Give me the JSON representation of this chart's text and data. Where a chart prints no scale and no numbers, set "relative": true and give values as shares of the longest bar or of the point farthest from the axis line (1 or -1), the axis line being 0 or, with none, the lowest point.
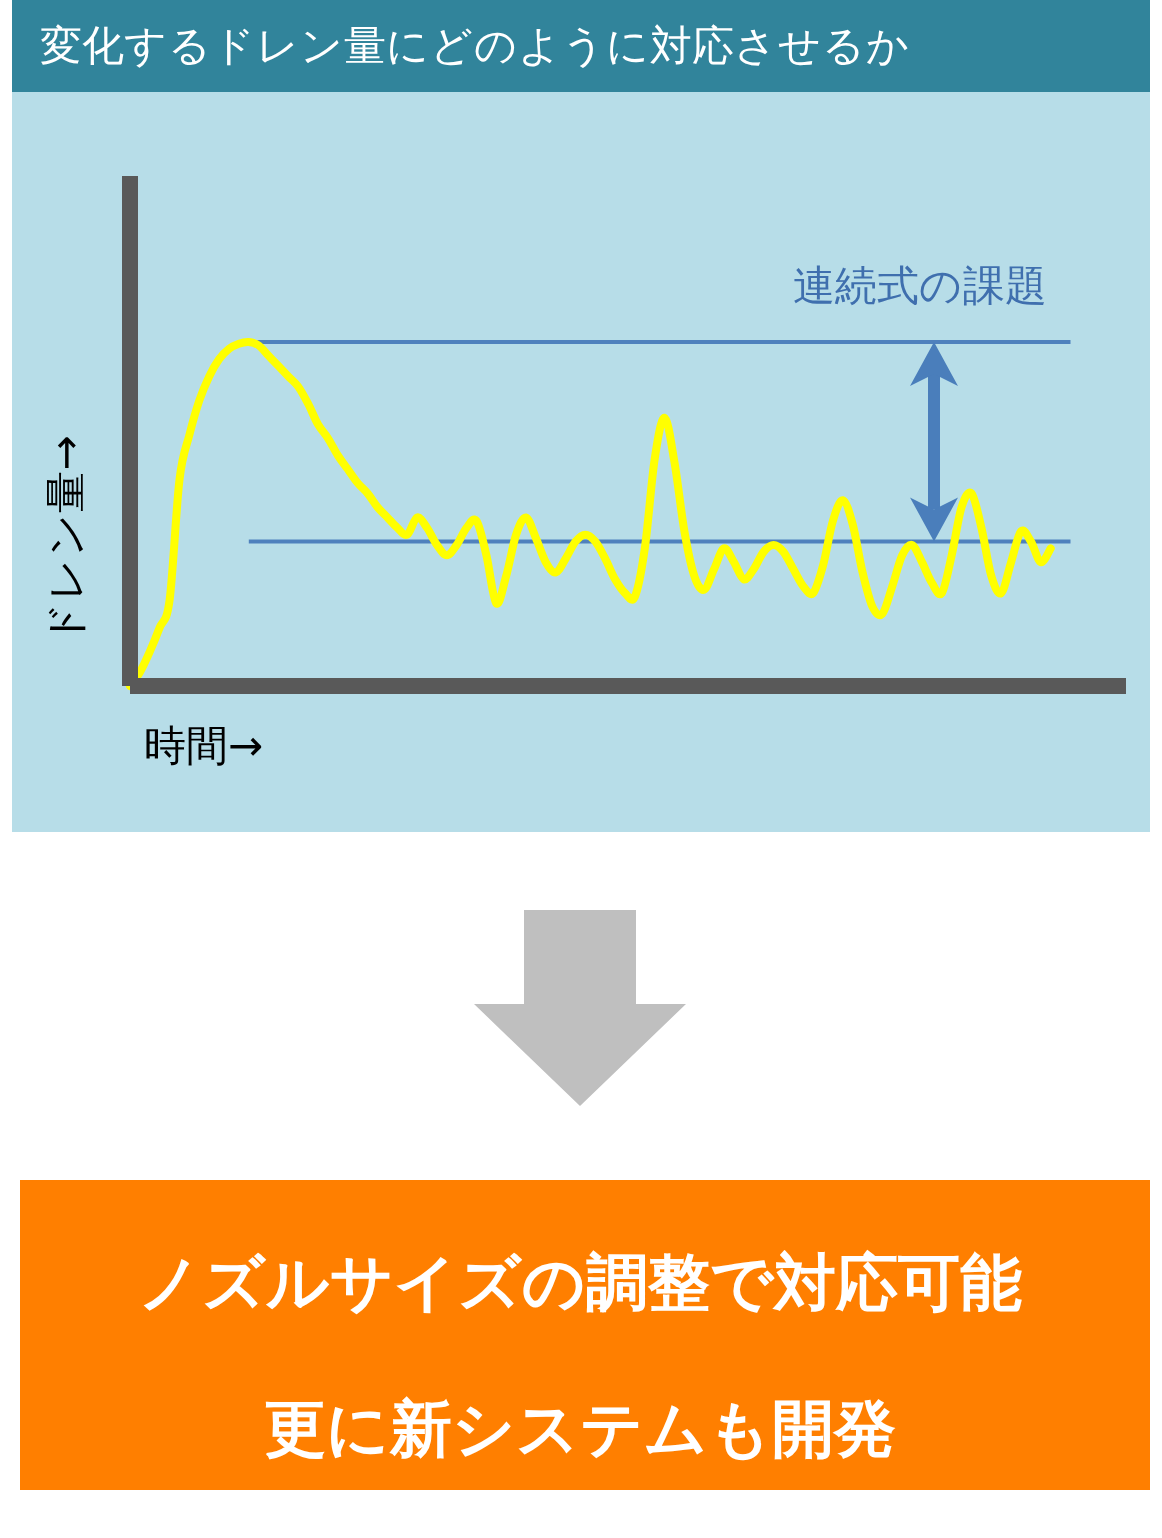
{
  "chart_data": {
    "type": "line",
    "relative": true,
    "title": "変化するドレン量にどのように対応させるか",
    "xlabel": "時間→",
    "ylabel": "ドレン量→",
    "categories": [
      null,
      null,
      null,
      null,
      null,
      null,
      null,
      null,
      null,
      null,
      null,
      null,
      null,
      null,
      null,
      null,
      null,
      null,
      null,
      null,
      null,
      null,
      null,
      null,
      null,
      null,
      null,
      null,
      null,
      null,
      null,
      null,
      null,
      null,
      null,
      null,
      null,
      null,
      null,
      null,
      null,
      null,
      null,
      null,
      null,
      null,
      null,
      null,
      null,
      null,
      null,
      null,
      null,
      null,
      null,
      null,
      null,
      null,
      null,
      null,
      null,
      null,
      null,
      null,
      null,
      null,
      null,
      null,
      null,
      null,
      null,
      null,
      null,
      null,
      null,
      null,
      null,
      null,
      null,
      null,
      null,
      null,
      null,
      null,
      null,
      null,
      null,
      null,
      null,
      null,
      null,
      null,
      null,
      null
    ],
    "series": [
      {
        "color": "#ffff00",
        "values": [
          0,
          0.04,
          0.1,
          0.17,
          0.25,
          0.6,
          0.73,
          0.83,
          0.9,
          0.95,
          0.98,
          0.995,
          1,
          0.99,
          0.96,
          0.93,
          0.9,
          0.87,
          0.82,
          0.76,
          0.72,
          0.67,
          0.63,
          0.59,
          0.56,
          0.52,
          0.49,
          0.46,
          0.44,
          0.49,
          0.46,
          0.41,
          0.38,
          0.41,
          0.46,
          0.48,
          0.38,
          0.24,
          0.32,
          0.44,
          0.49,
          0.43,
          0.36,
          0.33,
          0.37,
          0.42,
          0.44,
          0.42,
          0.37,
          0.31,
          0.27,
          0.26,
          0.4,
          0.66,
          0.78,
          0.65,
          0.45,
          0.32,
          0.28,
          0.34,
          0.4,
          0.36,
          0.31,
          0.34,
          0.39,
          0.41,
          0.39,
          0.34,
          0.29,
          0.27,
          0.35,
          0.48,
          0.54,
          0.47,
          0.33,
          0.23,
          0.21,
          0.29,
          0.38,
          0.41,
          0.36,
          0.3,
          0.27,
          0.38,
          0.52,
          0.56,
          0.46,
          0.32,
          0.27,
          0.36,
          0.45,
          0.42,
          0.36,
          0.4
        ]
      }
    ],
    "marker": "none",
    "line_style": "solid",
    "ref_lines": [
      {
        "axis": "y",
        "value": 1,
        "color": "#4f81bd"
      },
      {
        "axis": "y",
        "value": 0.42,
        "color": "#4f81bd"
      }
    ],
    "annotations": [
      "連続式の課題",
      "ノズルサイズの調整で対応可能",
      "更に新システムも開発"
    ]
  }
}
